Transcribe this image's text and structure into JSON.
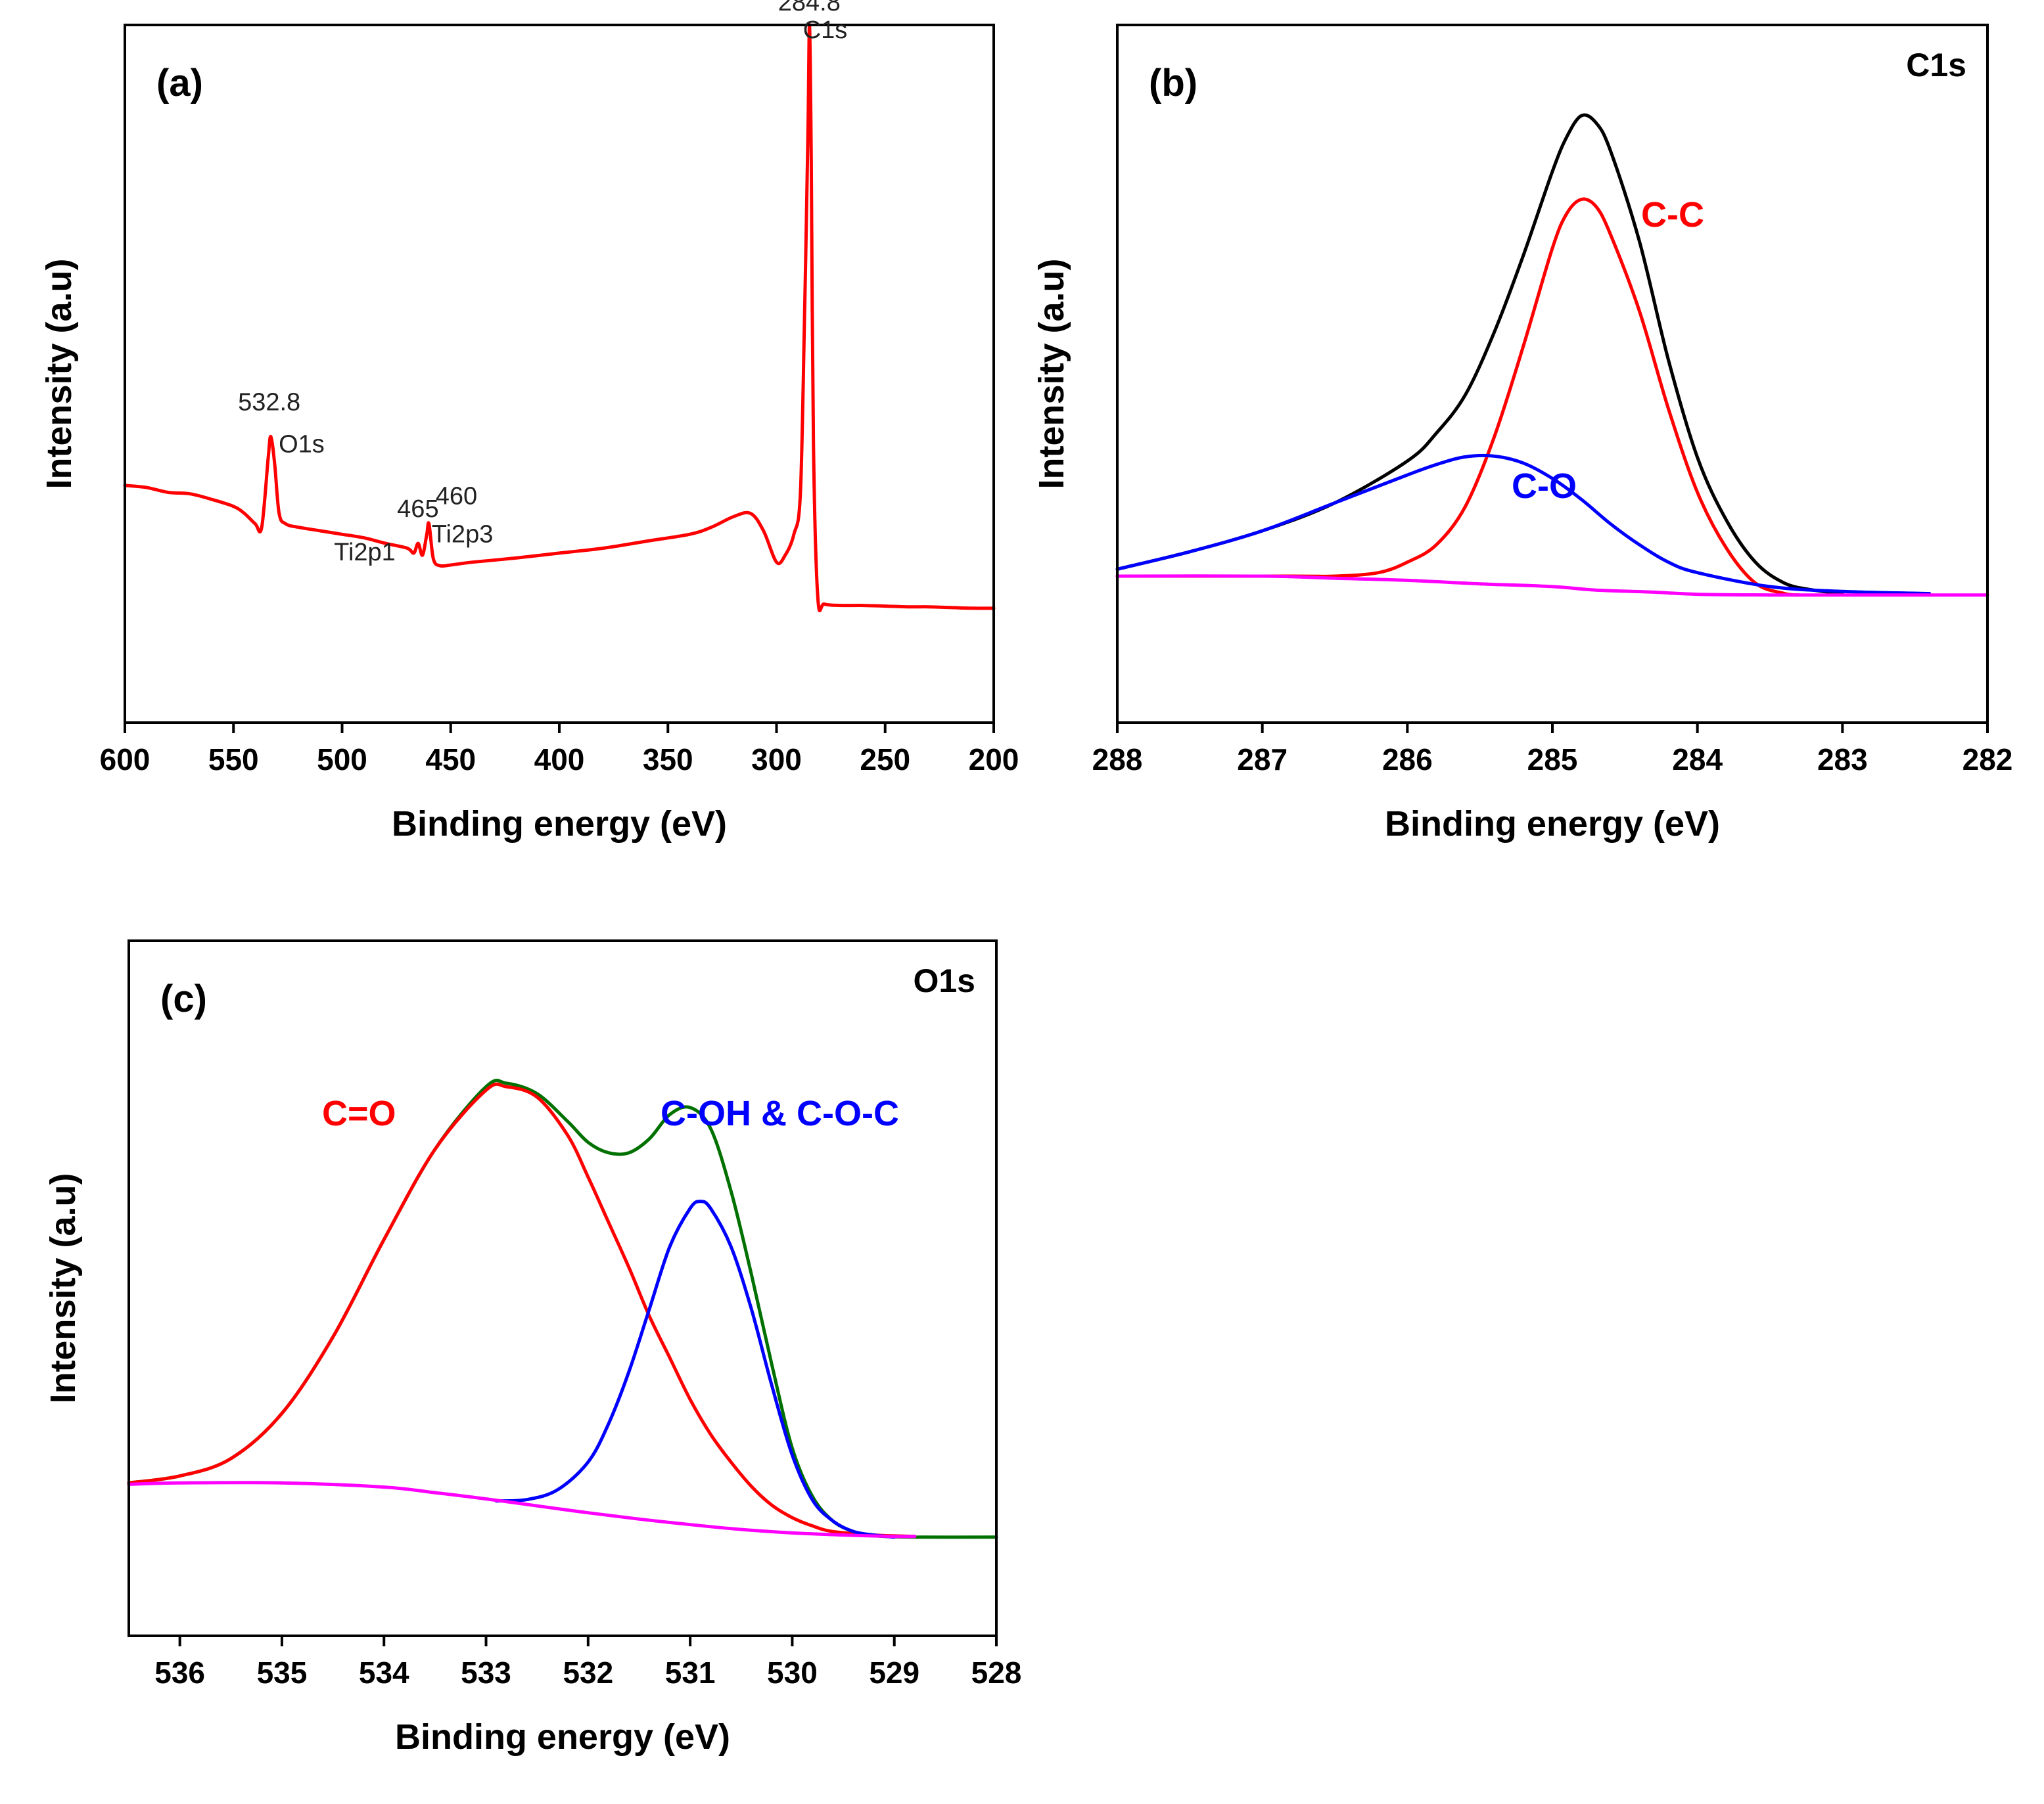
{
  "chart_data": [
    {
      "id": "a",
      "type": "line",
      "panel_label": "(a)",
      "corner_label": "",
      "xlabel": "Binding energy (eV)",
      "ylabel": "Intensity (a.u)",
      "xlim": [
        600,
        200
      ],
      "ylim": [
        0,
        100
      ],
      "xticks": [
        600,
        550,
        500,
        450,
        400,
        350,
        300,
        250,
        200
      ],
      "series": [
        {
          "name": "survey",
          "color": "#ff0000",
          "x": [
            600,
            590,
            580,
            570,
            560,
            550,
            545,
            540,
            537,
            534,
            532.8,
            531,
            529,
            526,
            520,
            510,
            500,
            490,
            480,
            470,
            467,
            465,
            463,
            461,
            460,
            458,
            455,
            450,
            440,
            420,
            400,
            380,
            360,
            340,
            330,
            320,
            312,
            306,
            300,
            296,
            292,
            289,
            287,
            285.5,
            284.8,
            284,
            283,
            281,
            278,
            270,
            260,
            250,
            240,
            230,
            220,
            210,
            200
          ],
          "y": [
            34,
            33.7,
            33,
            32.8,
            32,
            31,
            30,
            28.5,
            28,
            38,
            41,
            37,
            30,
            28.5,
            28,
            27.5,
            27,
            26.5,
            25.7,
            25,
            24.3,
            25.7,
            24,
            27,
            28.5,
            23.5,
            22.5,
            22.6,
            23,
            23.6,
            24.3,
            25,
            26,
            27,
            28,
            29.5,
            30,
            27.5,
            23,
            24,
            27,
            33,
            60,
            85,
            100,
            80,
            40,
            18,
            17,
            16.8,
            16.8,
            16.7,
            16.6,
            16.6,
            16.5,
            16.4,
            16.4
          ]
        }
      ],
      "annotations": [
        {
          "value": "532.8",
          "element": "O1s",
          "x": 532.8,
          "y": 41
        },
        {
          "value": "465",
          "element": "Ti2p1",
          "x": 465,
          "y": 25.7
        },
        {
          "value": "460",
          "element": "Ti2p3",
          "x": 460,
          "y": 28.5
        },
        {
          "value": "284.8",
          "element": "C1s",
          "x": 284.8,
          "y": 100
        }
      ]
    },
    {
      "id": "b",
      "type": "line",
      "panel_label": "(b)",
      "corner_label": "C1s",
      "xlabel": "Binding energy (eV)",
      "ylabel": "Intensity (a.u)",
      "xlim": [
        288,
        282
      ],
      "ylim": [
        0,
        100
      ],
      "xticks": [
        288,
        287,
        286,
        285,
        284,
        283,
        282
      ],
      "series": [
        {
          "name": "envelope",
          "color": "#000000",
          "x": [
            288,
            287.5,
            287,
            286.5,
            286,
            285.8,
            285.6,
            285.4,
            285.2,
            285,
            284.9,
            284.8,
            284.7,
            284.6,
            284.4,
            284.2,
            284,
            283.8,
            283.6,
            283.4,
            283.2,
            283
          ],
          "y": [
            22,
            24.5,
            27.5,
            31.5,
            37.5,
            41.5,
            47,
            56,
            67,
            79,
            84,
            87,
            86,
            82,
            69,
            52,
            38,
            29,
            23,
            20,
            19,
            18.5
          ]
        },
        {
          "name": "C-C",
          "color": "#ff0000",
          "label": "C-C",
          "x": [
            288,
            286.8,
            286.5,
            286.2,
            286,
            285.8,
            285.6,
            285.4,
            285.2,
            285,
            284.9,
            284.8,
            284.7,
            284.6,
            284.4,
            284.2,
            284,
            283.8,
            283.6,
            283.4,
            283.3
          ],
          "y": [
            21,
            21,
            21,
            21.5,
            23,
            25.5,
            31,
            41,
            54,
            68,
            73,
            75,
            74,
            70,
            59,
            45,
            33,
            25,
            20,
            18.5,
            18.3
          ]
        },
        {
          "name": "C-O",
          "color": "#0000ff",
          "label": "C-O",
          "x": [
            288,
            287.5,
            287,
            286.5,
            286,
            285.8,
            285.6,
            285.4,
            285.2,
            285,
            284.8,
            284.6,
            284.4,
            284.2,
            284,
            283.5,
            283,
            282.4
          ],
          "y": [
            22,
            24.5,
            27.5,
            31.5,
            35.5,
            37,
            38.1,
            38.2,
            37.2,
            35,
            32,
            28.5,
            25.5,
            23,
            21.5,
            19.5,
            18.8,
            18.5
          ]
        },
        {
          "name": "background",
          "color": "#ff00ff",
          "x": [
            288,
            287,
            286.5,
            286,
            285.5,
            285,
            284.7,
            284.3,
            284,
            283.5,
            283,
            282
          ],
          "y": [
            21,
            21,
            20.7,
            20.4,
            19.9,
            19.5,
            19,
            18.7,
            18.4,
            18.3,
            18.3,
            18.3
          ]
        }
      ],
      "annotations": []
    },
    {
      "id": "c",
      "type": "line",
      "panel_label": "(c)",
      "corner_label": "O1s",
      "xlabel": "Binding energy (eV)",
      "ylabel": "Intensity (a.u)",
      "xlim": [
        536.5,
        528
      ],
      "ylim": [
        0,
        100
      ],
      "xticks": [
        536,
        535,
        534,
        533,
        532,
        531,
        530,
        529,
        528
      ],
      "series": [
        {
          "name": "envelope",
          "color": "#007000",
          "x": [
            536.5,
            536,
            535.5,
            535,
            534.5,
            534,
            533.5,
            533,
            532.8,
            532.5,
            532.2,
            532,
            531.8,
            531.6,
            531.4,
            531.2,
            531,
            530.8,
            530.6,
            530.4,
            530.2,
            530,
            529.8,
            529.6,
            529.4,
            529.2,
            528.8,
            528
          ],
          "y": [
            22,
            23,
            25.5,
            32,
            43,
            57,
            70,
            79,
            79.5,
            78,
            74,
            71,
            69.5,
            69.5,
            71.5,
            75,
            76,
            73,
            64,
            52,
            39,
            27,
            20,
            16.5,
            15,
            14.4,
            14.2,
            14.2
          ]
        },
        {
          "name": "C=O",
          "color": "#ff0000",
          "label": "C=O",
          "x": [
            536.5,
            536,
            535.5,
            535,
            534.5,
            534,
            533.5,
            533,
            532.8,
            532.5,
            532.2,
            532,
            531.8,
            531.6,
            531.4,
            531.2,
            531,
            530.8,
            530.6,
            530.4,
            530.2,
            530,
            529.8,
            529.6,
            529.2,
            528.8
          ],
          "y": [
            22,
            23,
            25.5,
            32,
            43,
            57,
            70,
            78.5,
            79,
            77.5,
            72,
            66,
            59.5,
            53,
            46,
            40,
            34,
            29,
            25,
            21.5,
            18.8,
            17,
            15.8,
            15,
            14.5,
            14.3
          ]
        },
        {
          "name": "C-OH & C-O-C",
          "color": "#0000ff",
          "label": "C-OH & C-O-C",
          "x": [
            532.9,
            532.6,
            532.3,
            532,
            531.8,
            531.6,
            531.4,
            531.2,
            531,
            530.9,
            530.8,
            530.6,
            530.4,
            530.2,
            530,
            529.8,
            529.6,
            529.4,
            529.2,
            529
          ],
          "y": [
            19.4,
            19.6,
            21,
            25,
            30.5,
            38,
            47,
            56,
            61.5,
            62.5,
            61.5,
            56,
            47,
            36,
            26,
            19.5,
            16.5,
            15,
            14.5,
            14.2
          ]
        },
        {
          "name": "background",
          "color": "#ff00ff",
          "x": [
            536.5,
            536,
            535,
            534,
            533.5,
            533,
            532.5,
            532,
            531.5,
            531,
            530.5,
            530,
            529.5,
            529,
            528.8
          ],
          "y": [
            21.8,
            22,
            22,
            21.4,
            20.6,
            19.7,
            18.7,
            17.7,
            16.8,
            16,
            15.3,
            14.8,
            14.5,
            14.3,
            14.3
          ]
        }
      ],
      "annotations": []
    }
  ]
}
